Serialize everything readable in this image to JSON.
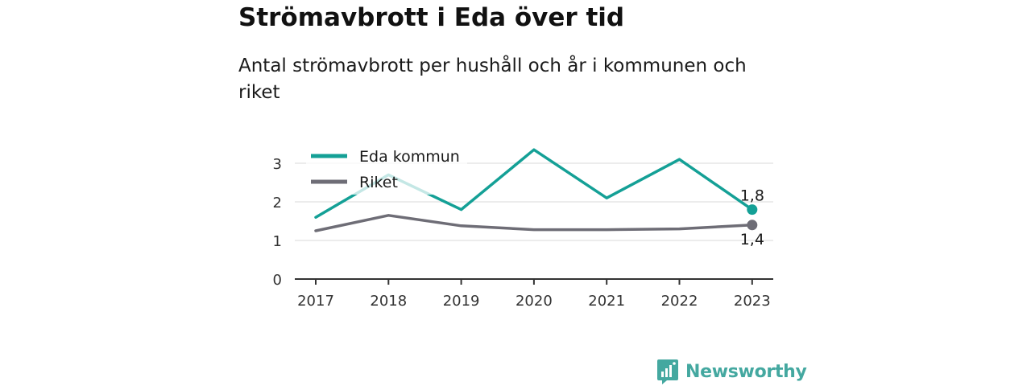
{
  "title": "Strömavbrott i Eda över tid",
  "subtitle": "Antal strömavbrott per hushåll och år i kommunen och riket",
  "brand": {
    "name": "Newsworthy",
    "icon": "newsworthy-logo-icon"
  },
  "colors": {
    "eda": "#14a096",
    "riket": "#6e6d76",
    "grid": "#d9d9d9",
    "axis": "#333333"
  },
  "chart_data": {
    "type": "line",
    "categories": [
      "2017",
      "2018",
      "2019",
      "2020",
      "2021",
      "2022",
      "2023"
    ],
    "series": [
      {
        "name": "Eda kommun",
        "values": [
          1.6,
          2.7,
          1.8,
          3.35,
          2.1,
          3.1,
          1.8
        ],
        "end_label": "1,8"
      },
      {
        "name": "Riket",
        "values": [
          1.25,
          1.65,
          1.38,
          1.28,
          1.28,
          1.3,
          1.4
        ],
        "end_label": "1,4"
      }
    ],
    "yticks": [
      0,
      1,
      2,
      3
    ],
    "ylim": [
      0,
      3.6
    ],
    "grid": true,
    "legend": "top-left"
  }
}
